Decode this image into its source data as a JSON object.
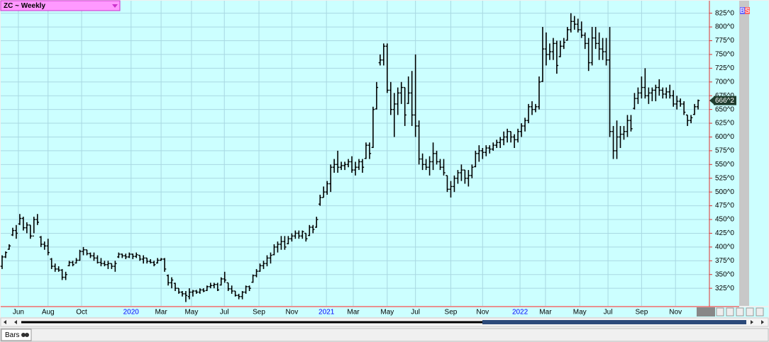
{
  "chart_data": {
    "type": "ohlc",
    "title": "ZC ~ Weekly",
    "tab_label": "Bars",
    "buy_sell_icons": [
      "B",
      "S"
    ],
    "last_value_label": "666^2",
    "color": "#000000",
    "background": "#ccffff",
    "grid": true,
    "xlim": [
      -0.6,
      200.2
    ],
    "ylim": [
      293,
      849
    ],
    "yticks": [
      {
        "value": 325,
        "label": "325^0"
      },
      {
        "value": 350,
        "label": "350^0"
      },
      {
        "value": 375,
        "label": "375^0"
      },
      {
        "value": 400,
        "label": "400^0"
      },
      {
        "value": 425,
        "label": "425^0"
      },
      {
        "value": 450,
        "label": "450^0"
      },
      {
        "value": 475,
        "label": "475^0"
      },
      {
        "value": 500,
        "label": "500^0"
      },
      {
        "value": 525,
        "label": "525^0"
      },
      {
        "value": 550,
        "label": "550^0"
      },
      {
        "value": 575,
        "label": "575^0"
      },
      {
        "value": 600,
        "label": "600^0"
      },
      {
        "value": 625,
        "label": "625^0"
      },
      {
        "value": 650,
        "label": "650^0"
      },
      {
        "value": 675,
        "label": "675^0"
      },
      {
        "value": 700,
        "label": "700^0"
      },
      {
        "value": 725,
        "label": "725^0"
      },
      {
        "value": 750,
        "label": "750^0"
      },
      {
        "value": 775,
        "label": "775^0"
      },
      {
        "value": 800,
        "label": "800^0"
      },
      {
        "value": 825,
        "label": "825^0"
      }
    ],
    "xticks": [
      {
        "value": 4.6,
        "label": "Jun"
      },
      {
        "value": 13,
        "label": "Aug"
      },
      {
        "value": 22.5,
        "label": "Oct"
      },
      {
        "value": 36.5,
        "label": "2020"
      },
      {
        "value": 45,
        "label": "Mar"
      },
      {
        "value": 53.6,
        "label": "May"
      },
      {
        "value": 62.9,
        "label": "Jul"
      },
      {
        "value": 72.7,
        "label": "Sep"
      },
      {
        "value": 82,
        "label": "Nov"
      },
      {
        "value": 91.8,
        "label": "2021"
      },
      {
        "value": 99.4,
        "label": "Mar"
      },
      {
        "value": 109,
        "label": "May"
      },
      {
        "value": 117,
        "label": "Jul"
      },
      {
        "value": 127,
        "label": "Sep"
      },
      {
        "value": 136,
        "label": "Nov"
      },
      {
        "value": 146.6,
        "label": "2022"
      },
      {
        "value": 153.8,
        "label": "Mar"
      },
      {
        "value": 163.5,
        "label": "May"
      },
      {
        "value": 171.5,
        "label": "Jul"
      },
      {
        "value": 181,
        "label": "Sep"
      },
      {
        "value": 190.6,
        "label": "Nov"
      }
    ],
    "open": [
      365,
      382,
      396,
      422,
      430,
      442,
      452,
      435,
      440,
      420,
      450,
      418,
      405,
      402,
      378,
      365,
      360,
      358,
      345,
      366,
      372,
      371,
      376,
      392,
      395,
      388,
      384,
      380,
      372,
      370,
      368,
      370,
      365,
      382,
      387,
      384,
      382,
      387,
      383,
      385,
      378,
      380,
      374,
      372,
      371,
      376,
      378,
      348,
      335,
      334,
      325,
      318,
      315,
      310,
      318,
      320,
      318,
      322,
      321,
      328,
      330,
      332,
      331,
      342,
      335,
      324,
      320,
      312,
      310,
      318,
      328,
      336,
      348,
      356,
      366,
      370,
      380,
      386,
      400,
      405,
      410,
      406,
      415,
      420,
      425,
      420,
      425,
      421,
      436,
      436,
      478,
      490,
      500,
      515,
      545,
      550,
      545,
      548,
      550,
      555,
      540,
      545,
      555,
      561,
      585,
      581,
      651,
      735,
      740,
      765,
      685,
      650,
      660,
      680,
      690,
      661,
      680,
      640,
      620,
      560,
      550,
      545,
      555,
      570,
      555,
      545,
      530,
      505,
      510,
      525,
      535,
      540,
      525,
      530,
      546,
      570,
      575,
      572,
      580,
      578,
      585,
      590,
      595,
      600,
      610,
      600,
      595,
      610,
      620,
      630,
      655,
      650,
      655,
      701,
      760,
      750,
      755,
      770,
      746,
      765,
      776,
      795,
      810,
      805,
      795,
      785,
      770,
      735,
      780,
      770,
      760,
      755,
      740,
      610,
      575,
      600,
      605,
      610,
      630,
      652,
      670,
      680,
      690,
      675,
      680,
      685,
      690,
      685,
      678,
      682,
      675,
      660,
      665,
      660,
      640,
      630,
      641,
      655
    ],
    "high": [
      385,
      392,
      405,
      435,
      440,
      460,
      455,
      445,
      440,
      455,
      460,
      420,
      410,
      415,
      380,
      370,
      365,
      360,
      355,
      375,
      375,
      380,
      395,
      400,
      395,
      390,
      390,
      385,
      380,
      375,
      375,
      370,
      375,
      390,
      388,
      388,
      390,
      388,
      390,
      385,
      385,
      380,
      378,
      375,
      380,
      380,
      380,
      350,
      345,
      335,
      325,
      320,
      320,
      325,
      322,
      322,
      325,
      325,
      330,
      335,
      335,
      335,
      345,
      355,
      335,
      330,
      320,
      315,
      320,
      330,
      330,
      350,
      360,
      370,
      375,
      385,
      390,
      405,
      410,
      420,
      420,
      420,
      425,
      430,
      430,
      430,
      425,
      440,
      440,
      455,
      495,
      510,
      520,
      550,
      560,
      575,
      555,
      555,
      560,
      565,
      555,
      560,
      560,
      590,
      590,
      655,
      700,
      750,
      770,
      770,
      700,
      680,
      690,
      700,
      690,
      710,
      720,
      750,
      630,
      570,
      560,
      565,
      590,
      575,
      560,
      560,
      530,
      520,
      530,
      540,
      550,
      540,
      540,
      550,
      575,
      585,
      580,
      585,
      585,
      590,
      595,
      600,
      610,
      615,
      610,
      605,
      615,
      625,
      635,
      660,
      665,
      660,
      710,
      800,
      790,
      770,
      780,
      775,
      775,
      780,
      800,
      825,
      820,
      815,
      810,
      790,
      780,
      800,
      800,
      790,
      780,
      780,
      800,
      620,
      630,
      620,
      620,
      640,
      640,
      680,
      690,
      710,
      725,
      690,
      690,
      695,
      705,
      690,
      690,
      695,
      685,
      675,
      670,
      665,
      640,
      640,
      660,
      668
    ],
    "low": [
      360,
      380,
      395,
      420,
      415,
      440,
      430,
      425,
      415,
      425,
      440,
      400,
      395,
      385,
      360,
      355,
      355,
      340,
      340,
      365,
      365,
      370,
      375,
      385,
      385,
      380,
      375,
      370,
      365,
      365,
      360,
      360,
      355,
      380,
      380,
      378,
      380,
      378,
      380,
      375,
      370,
      370,
      370,
      365,
      370,
      375,
      355,
      330,
      325,
      320,
      315,
      310,
      300,
      305,
      310,
      315,
      315,
      318,
      320,
      325,
      325,
      320,
      330,
      335,
      320,
      315,
      310,
      305,
      305,
      315,
      320,
      335,
      345,
      355,
      360,
      365,
      370,
      385,
      390,
      395,
      395,
      405,
      410,
      415,
      415,
      415,
      410,
      420,
      425,
      435,
      475,
      490,
      495,
      500,
      535,
      535,
      540,
      540,
      545,
      535,
      530,
      540,
      535,
      560,
      560,
      580,
      650,
      730,
      730,
      680,
      640,
      600,
      640,
      660,
      620,
      660,
      620,
      600,
      550,
      540,
      540,
      530,
      540,
      550,
      540,
      530,
      500,
      490,
      500,
      515,
      520,
      515,
      510,
      525,
      545,
      555,
      560,
      565,
      570,
      575,
      580,
      580,
      585,
      590,
      590,
      580,
      590,
      600,
      610,
      625,
      640,
      645,
      650,
      700,
      730,
      740,
      740,
      715,
      745,
      760,
      775,
      790,
      795,
      790,
      780,
      760,
      720,
      730,
      760,
      740,
      740,
      730,
      600,
      560,
      560,
      580,
      595,
      600,
      610,
      650,
      660,
      670,
      670,
      660,
      665,
      665,
      675,
      670,
      670,
      670,
      655,
      650,
      655,
      640,
      620,
      625,
      640,
      650
    ],
    "close": [
      382,
      390,
      402,
      430,
      425,
      452,
      435,
      440,
      420,
      450,
      445,
      405,
      402,
      390,
      365,
      360,
      358,
      345,
      350,
      372,
      368,
      376,
      392,
      395,
      388,
      384,
      380,
      372,
      370,
      368,
      370,
      365,
      370,
      387,
      384,
      382,
      387,
      383,
      386,
      378,
      380,
      374,
      372,
      368,
      376,
      378,
      360,
      335,
      340,
      325,
      318,
      315,
      312,
      318,
      320,
      318,
      322,
      320,
      328,
      330,
      332,
      322,
      342,
      340,
      324,
      320,
      312,
      310,
      318,
      328,
      325,
      348,
      356,
      366,
      370,
      380,
      385,
      400,
      405,
      410,
      400,
      415,
      420,
      425,
      420,
      428,
      415,
      436,
      432,
      450,
      490,
      500,
      515,
      545,
      550,
      545,
      548,
      550,
      555,
      540,
      545,
      555,
      545,
      585,
      570,
      650,
      690,
      740,
      765,
      685,
      650,
      660,
      680,
      690,
      640,
      680,
      640,
      620,
      560,
      550,
      545,
      555,
      570,
      555,
      545,
      535,
      505,
      510,
      525,
      535,
      540,
      525,
      530,
      545,
      570,
      575,
      572,
      580,
      578,
      585,
      590,
      595,
      600,
      610,
      600,
      595,
      610,
      620,
      630,
      655,
      650,
      655,
      700,
      760,
      750,
      755,
      770,
      730,
      765,
      772,
      795,
      810,
      805,
      795,
      785,
      770,
      735,
      780,
      770,
      760,
      755,
      740,
      610,
      575,
      600,
      605,
      610,
      630,
      615,
      670,
      680,
      690,
      675,
      680,
      685,
      690,
      685,
      678,
      682,
      675,
      660,
      665,
      660,
      645,
      630,
      635,
      655,
      666.25
    ]
  }
}
